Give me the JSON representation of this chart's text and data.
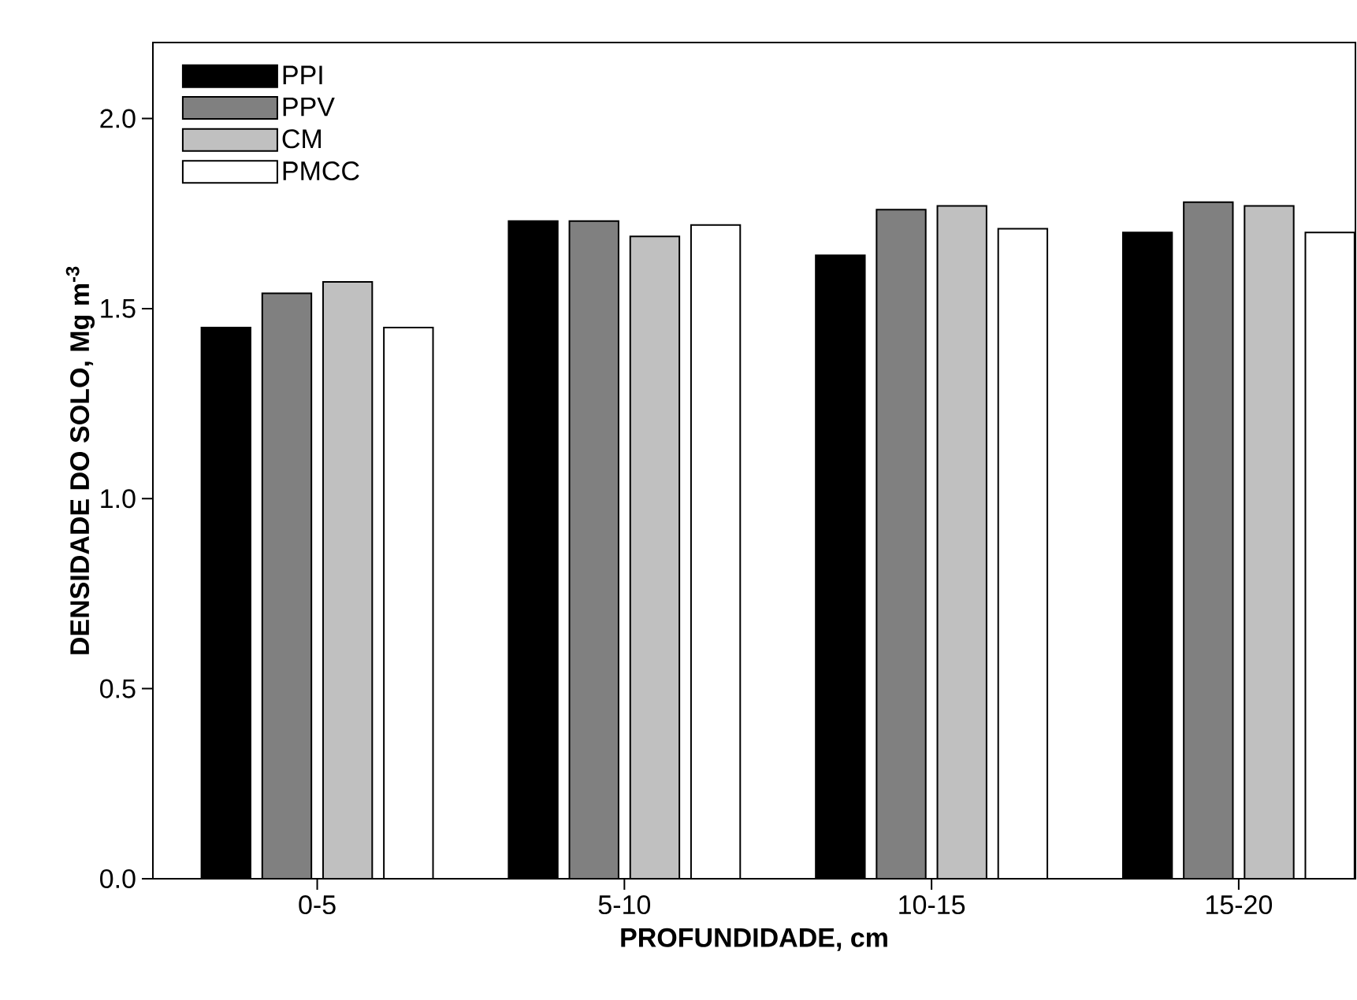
{
  "chart_data": {
    "type": "bar",
    "xlabel": "PROFUNDIDADE, cm",
    "ylabel": "DENSIDADE DO SOLO, Mg m$^{-3}$",
    "categories": [
      "0-5",
      "5-10",
      "10-15",
      "15-20"
    ],
    "series": [
      {
        "name": "PPI",
        "color": "#000000",
        "values": [
          1.45,
          1.73,
          1.64,
          1.7
        ]
      },
      {
        "name": "PPV",
        "color": "#808080",
        "values": [
          1.54,
          1.73,
          1.76,
          1.78
        ]
      },
      {
        "name": "CM",
        "color": "#c0c0c0",
        "values": [
          1.57,
          1.69,
          1.77,
          1.77
        ]
      },
      {
        "name": "PMCC",
        "color": "#ffffff",
        "values": [
          1.45,
          1.72,
          1.71,
          1.7
        ]
      }
    ],
    "ylim": [
      0,
      2.2
    ],
    "yticks": [
      {
        "value": 0,
        "label": "0.0"
      },
      {
        "value": 0.5,
        "label": "0.5"
      },
      {
        "value": 1,
        "label": "1.0"
      },
      {
        "value": 1.5,
        "label": "1.5"
      },
      {
        "value": 2,
        "label": "2.0"
      }
    ],
    "legend": "top left",
    "grid": false
  }
}
